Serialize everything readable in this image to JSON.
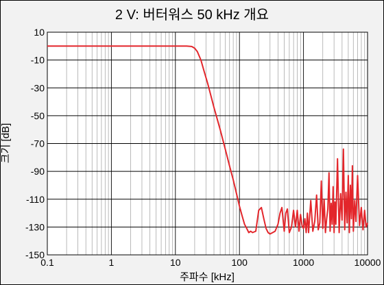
{
  "chart_data": {
    "type": "line",
    "title": "2 V: 버터워스 50 kHz 개요",
    "xlabel": "주파수 [kHz]",
    "ylabel": "크기 [dB]",
    "x_scale": "log",
    "xlim": [
      0.1,
      10000
    ],
    "ylim": [
      -150,
      10
    ],
    "x_ticks": [
      0.1,
      1,
      10,
      100,
      1000,
      10000
    ],
    "x_tick_labels": [
      "0.1",
      "1",
      "10",
      "100",
      "1000",
      "10000"
    ],
    "y_ticks": [
      10,
      -10,
      -30,
      -50,
      -70,
      -90,
      -110,
      -130,
      -150
    ],
    "y_tick_labels": [
      "10",
      "-10",
      "-30",
      "-50",
      "-70",
      "-90",
      "-110",
      "-130",
      "-150"
    ],
    "grid": true,
    "series": [
      {
        "color": "#e3262b",
        "x": [
          0.1,
          1,
          5,
          10,
          15,
          18,
          20,
          22,
          25,
          28,
          32,
          40,
          50,
          60,
          70,
          80,
          90,
          100,
          110,
          120,
          130,
          140,
          150,
          160,
          180,
          200,
          220,
          240,
          260,
          280,
          300,
          330,
          360,
          400,
          430,
          460,
          500,
          530,
          560,
          600,
          650,
          700,
          750,
          800,
          850,
          900,
          950,
          1000,
          1050,
          1100,
          1150,
          1200,
          1300,
          1400,
          1500,
          1600,
          1700,
          1800,
          1900,
          2000,
          2100,
          2200,
          2300,
          2400,
          2500,
          2600,
          2700,
          2800,
          2900,
          3000,
          3100,
          3200,
          3400,
          3600,
          3800,
          4000,
          4200,
          4400,
          4600,
          4800,
          5000,
          5200,
          5400,
          5600,
          5800,
          6000,
          6300,
          6600,
          7000,
          7500,
          8000,
          8500,
          9000,
          9500,
          10000
        ],
        "y": [
          0,
          0,
          0,
          0,
          0,
          -0.3,
          -1.5,
          -4,
          -10,
          -18,
          -27,
          -44,
          -60,
          -74,
          -86,
          -96,
          -106,
          -115,
          -122,
          -128,
          -131,
          -134,
          -133,
          -134,
          -133,
          -118,
          -116,
          -124,
          -131,
          -134,
          -135,
          -134,
          -133,
          -128,
          -120,
          -116,
          -133,
          -120,
          -117,
          -134,
          -130,
          -118,
          -130,
          -118,
          -133,
          -121,
          -129,
          -131,
          -124,
          -134,
          -120,
          -134,
          -111,
          -133,
          -126,
          -107,
          -132,
          -127,
          -97,
          -131,
          -110,
          -134,
          -124,
          -117,
          -91,
          -133,
          -113,
          -128,
          -101,
          -134,
          -112,
          -128,
          -81,
          -134,
          -106,
          -125,
          -74,
          -132,
          -105,
          -127,
          -93,
          -134,
          -100,
          -124,
          -86,
          -133,
          -111,
          -126,
          -93,
          -129,
          -116,
          -132,
          -118,
          -130,
          -127
        ]
      }
    ]
  }
}
